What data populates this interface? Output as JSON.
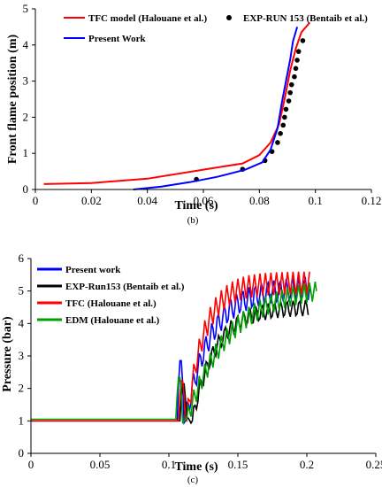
{
  "chart_data": [
    {
      "type": "line",
      "caption": "(b)",
      "xlabel": "Time (s)",
      "ylabel": "Front flame position (m)",
      "xlim": [
        0,
        0.12
      ],
      "ylim": [
        0,
        5
      ],
      "xticks": [
        "0",
        "0.02",
        "0.04",
        "0.06",
        "0.08",
        "0.1",
        "0.12"
      ],
      "yticks": [
        "0",
        "1",
        "2",
        "3",
        "4",
        "5"
      ],
      "legend_placement": "top",
      "series": [
        {
          "name": "TFC model (Halouane et al.)",
          "kind": "line",
          "color": "#ff0000",
          "points": [
            [
              0.003,
              0.15
            ],
            [
              0.02,
              0.18
            ],
            [
              0.04,
              0.3
            ],
            [
              0.06,
              0.55
            ],
            [
              0.074,
              0.72
            ],
            [
              0.08,
              0.95
            ],
            [
              0.084,
              1.3
            ],
            [
              0.087,
              1.8
            ],
            [
              0.089,
              2.5
            ],
            [
              0.091,
              3.3
            ],
            [
              0.093,
              3.9
            ],
            [
              0.095,
              4.35
            ],
            [
              0.098,
              4.62
            ]
          ]
        },
        {
          "name": "EXP-RUN 153 (Bentaib et al.)",
          "kind": "marker",
          "color": "#000000",
          "points": [
            [
              0.0575,
              0.28
            ],
            [
              0.074,
              0.56
            ],
            [
              0.082,
              0.8
            ],
            [
              0.0845,
              1.05
            ],
            [
              0.0865,
              1.3
            ],
            [
              0.0875,
              1.55
            ],
            [
              0.0885,
              1.78
            ],
            [
              0.089,
              2.0
            ],
            [
              0.0895,
              2.22
            ],
            [
              0.0905,
              2.45
            ],
            [
              0.091,
              2.68
            ],
            [
              0.0915,
              2.9
            ],
            [
              0.0925,
              3.12
            ],
            [
              0.093,
              3.35
            ],
            [
              0.0935,
              3.58
            ],
            [
              0.094,
              3.82
            ],
            [
              0.0955,
              4.12
            ]
          ]
        },
        {
          "name": "Present Work",
          "kind": "line",
          "color": "#0000ff",
          "points": [
            [
              0.035,
              0.0
            ],
            [
              0.045,
              0.08
            ],
            [
              0.055,
              0.2
            ],
            [
              0.065,
              0.35
            ],
            [
              0.075,
              0.55
            ],
            [
              0.081,
              0.75
            ],
            [
              0.084,
              1.1
            ],
            [
              0.0865,
              1.7
            ],
            [
              0.088,
              2.4
            ],
            [
              0.0895,
              3.0
            ],
            [
              0.091,
              3.6
            ],
            [
              0.092,
              4.1
            ],
            [
              0.0935,
              4.5
            ]
          ]
        }
      ]
    },
    {
      "type": "line",
      "caption": "(c)",
      "xlabel": "Time (s)",
      "ylabel": "Pressure (bar)",
      "xlim": [
        0,
        0.25
      ],
      "ylim": [
        0,
        6
      ],
      "xticks": [
        "0",
        "0.05",
        "0.1",
        "0.15",
        "0.2",
        "0.25"
      ],
      "yticks": [
        "0",
        "1",
        "2",
        "3",
        "4",
        "5",
        "6"
      ],
      "legend_placement": "top-left",
      "series": [
        {
          "name": "Present work",
          "color": "#0000ff",
          "kind": "line"
        },
        {
          "name": "EXP-Run153 (Bentaib et al.)",
          "color": "#000000",
          "kind": "line"
        },
        {
          "name": "TFC (Halouane et al.)",
          "color": "#ff0000",
          "kind": "line"
        },
        {
          "name": "EDM (Halouane et al.)",
          "color": "#00a000",
          "kind": "line"
        }
      ]
    }
  ]
}
